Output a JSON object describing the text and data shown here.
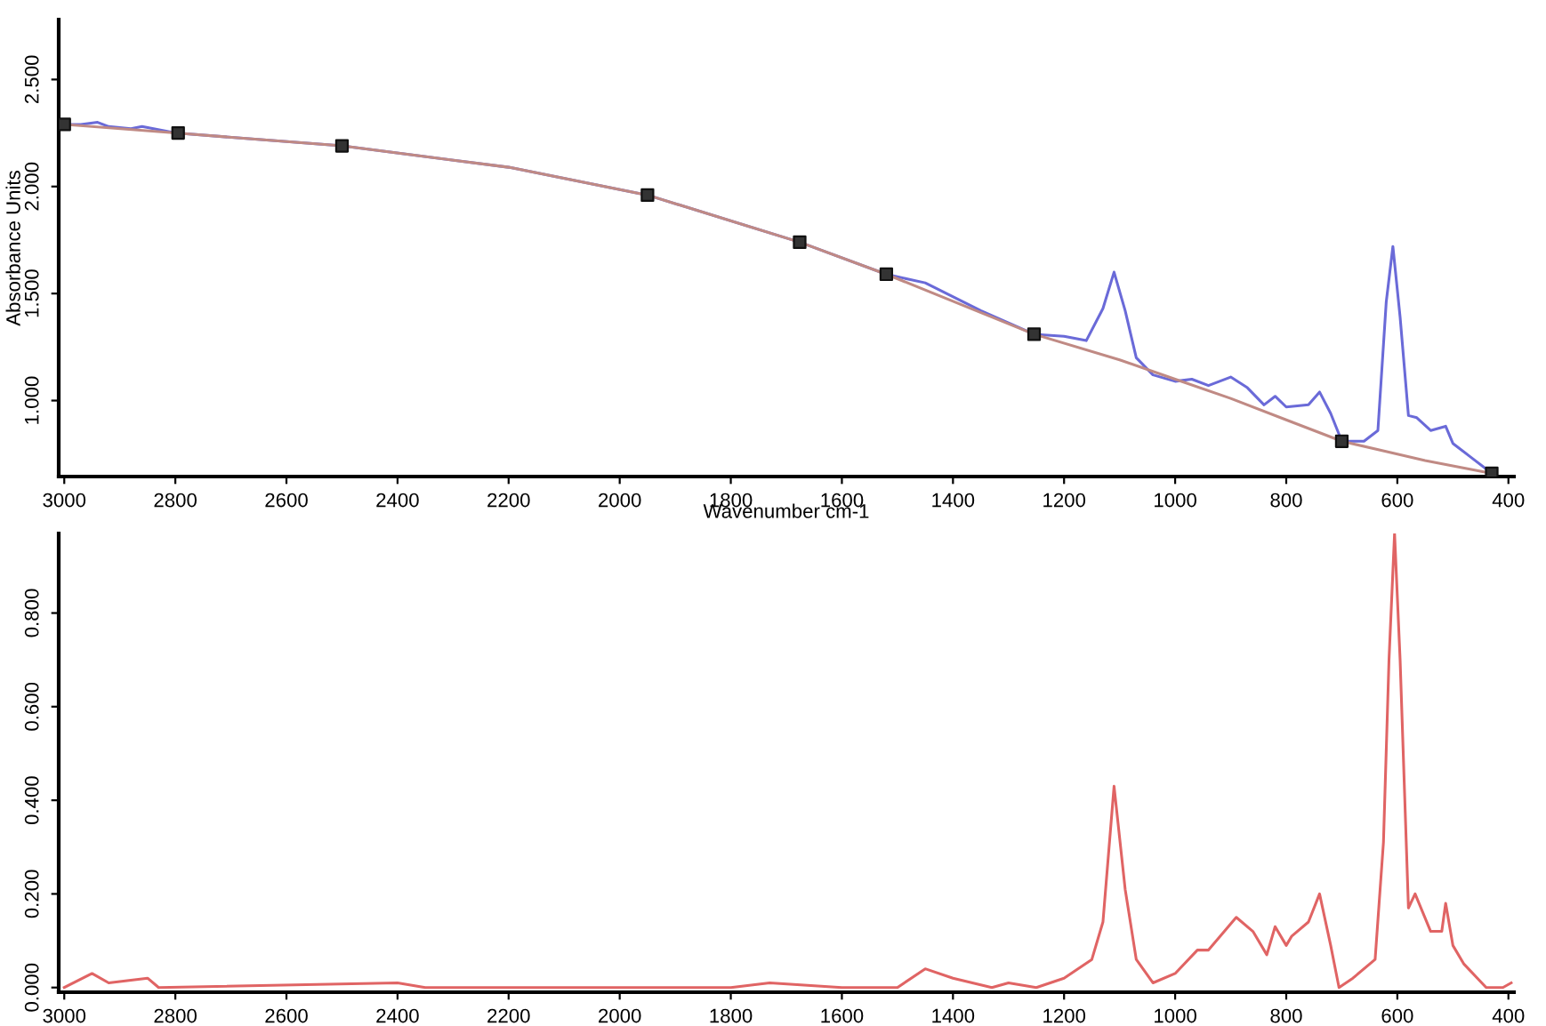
{
  "chart_data": [
    {
      "type": "line",
      "xlabel": "Wavenumber cm-1",
      "ylabel": "Absorbance Units",
      "xlim": [
        3010,
        390
      ],
      "ylim": [
        0.645,
        2.78
      ],
      "xticks": [
        3000,
        2800,
        2600,
        2400,
        2200,
        2000,
        1800,
        1600,
        1400,
        1200,
        1000,
        800,
        600,
        400
      ],
      "yticks": [
        {
          "value": 1.0,
          "label": "1.000"
        },
        {
          "value": 1.5,
          "label": "1.500"
        },
        {
          "value": 2.0,
          "label": "2.000"
        },
        {
          "value": 2.5,
          "label": "2.500"
        }
      ],
      "grid": false,
      "legend": false,
      "series": [
        {
          "color": "#6a6ad8",
          "x": [
            3000,
            2970,
            2940,
            2920,
            2880,
            2860,
            2800,
            2500,
            2200,
            1950,
            1676,
            1520,
            1450,
            1350,
            1254,
            1200,
            1160,
            1130,
            1110,
            1090,
            1070,
            1040,
            1000,
            970,
            940,
            900,
            870,
            840,
            820,
            800,
            760,
            740,
            720,
            700,
            660,
            635,
            620,
            608,
            595,
            580,
            565,
            540,
            513,
            500,
            470,
            430
          ],
          "values": [
            2.29,
            2.29,
            2.3,
            2.28,
            2.27,
            2.28,
            2.25,
            2.19,
            2.09,
            1.96,
            1.74,
            1.59,
            1.55,
            1.42,
            1.31,
            1.3,
            1.28,
            1.43,
            1.6,
            1.42,
            1.2,
            1.12,
            1.09,
            1.1,
            1.07,
            1.11,
            1.06,
            0.98,
            1.02,
            0.97,
            0.98,
            1.04,
            0.94,
            0.81,
            0.81,
            0.86,
            1.46,
            1.72,
            1.39,
            0.93,
            0.92,
            0.86,
            0.88,
            0.8,
            0.74,
            0.66
          ]
        },
        {
          "color": "#c08a84",
          "x": [
            3000,
            2800,
            2500,
            2200,
            1950,
            1676,
            1520,
            1254,
            1100,
            1000,
            900,
            800,
            700,
            550,
            430
          ],
          "values": [
            2.29,
            2.25,
            2.19,
            2.09,
            1.96,
            1.74,
            1.59,
            1.31,
            1.19,
            1.1,
            1.01,
            0.91,
            0.81,
            0.72,
            0.66
          ]
        },
        {
          "type": "scatter",
          "color": "#333333",
          "marker": "square",
          "x": [
            3000,
            2795,
            2500,
            1950,
            1676,
            1520,
            1254,
            700,
            430
          ],
          "values": [
            2.29,
            2.25,
            2.19,
            1.96,
            1.74,
            1.59,
            1.31,
            0.81,
            0.66
          ]
        }
      ]
    },
    {
      "type": "line",
      "xlim": [
        3010,
        390
      ],
      "ylim": [
        -0.01,
        0.97
      ],
      "xticks": [
        3000,
        2800,
        2600,
        2400,
        2200,
        2000,
        1800,
        1600,
        1400,
        1200,
        1000,
        800,
        600,
        400
      ],
      "yticks": [
        {
          "value": 0.0,
          "label": "0.000"
        },
        {
          "value": 0.2,
          "label": "0.200"
        },
        {
          "value": 0.4,
          "label": "0.400"
        },
        {
          "value": 0.6,
          "label": "0.600"
        },
        {
          "value": 0.8,
          "label": "0.800"
        }
      ],
      "grid": false,
      "legend": false,
      "series": [
        {
          "color": "#e06464",
          "x": [
            3000,
            2950,
            2920,
            2850,
            2830,
            2400,
            2350,
            1800,
            1730,
            1600,
            1500,
            1450,
            1400,
            1330,
            1300,
            1250,
            1200,
            1150,
            1130,
            1110,
            1090,
            1070,
            1040,
            1000,
            960,
            940,
            890,
            860,
            835,
            820,
            800,
            790,
            760,
            740,
            720,
            705,
            680,
            640,
            625,
            615,
            605,
            595,
            580,
            568,
            540,
            520,
            513,
            500,
            480,
            440,
            410,
            395
          ],
          "values": [
            0.0,
            0.03,
            0.01,
            0.02,
            0.0,
            0.01,
            0.0,
            0.0,
            0.01,
            0.0,
            0.0,
            0.04,
            0.02,
            0.0,
            0.01,
            0.0,
            0.02,
            0.06,
            0.14,
            0.43,
            0.21,
            0.06,
            0.01,
            0.03,
            0.08,
            0.08,
            0.15,
            0.12,
            0.07,
            0.13,
            0.09,
            0.11,
            0.14,
            0.2,
            0.09,
            0.0,
            0.02,
            0.06,
            0.31,
            0.7,
            0.97,
            0.7,
            0.17,
            0.2,
            0.12,
            0.12,
            0.18,
            0.09,
            0.05,
            0.0,
            0.0,
            0.01
          ]
        }
      ]
    }
  ]
}
